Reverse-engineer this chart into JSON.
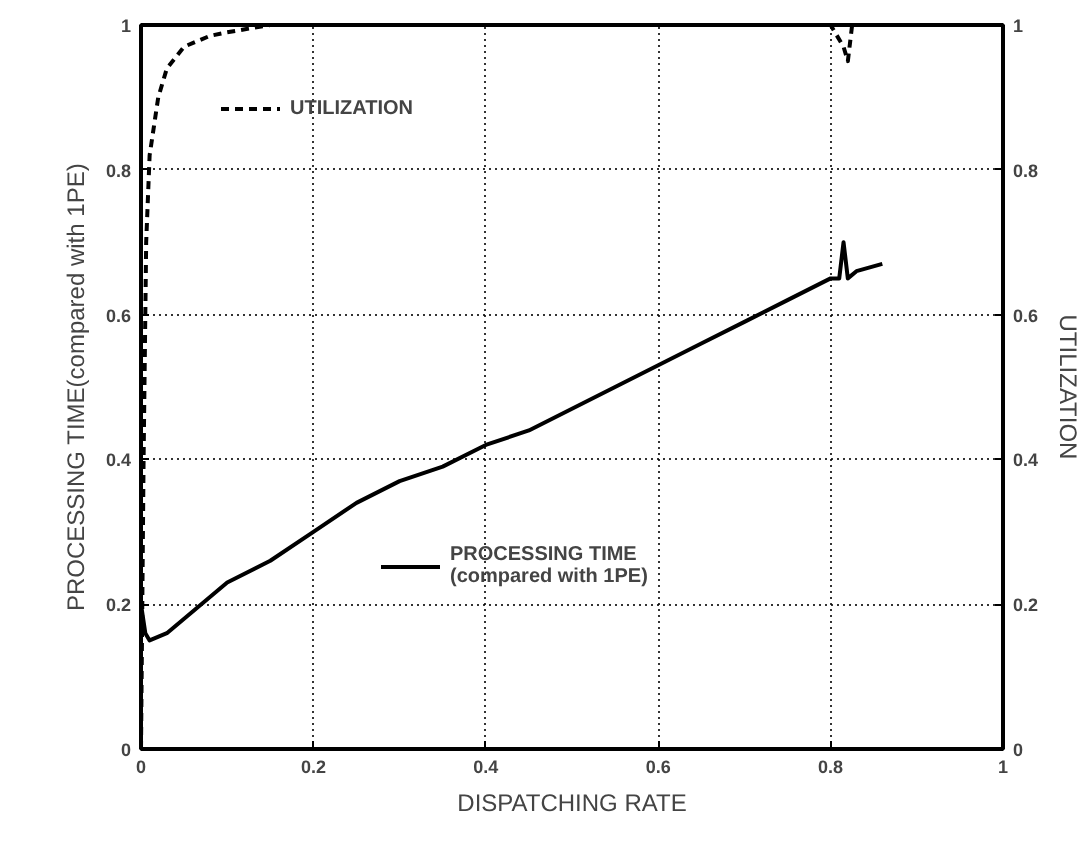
{
  "chart_data": {
    "type": "line",
    "xlabel": "DISPATCHING RATE",
    "ylabel": "PROCESSING TIME(compared with 1PE)",
    "y2label": "UTILIZATION",
    "xlim": [
      0,
      1
    ],
    "xticks": [
      0,
      0.2,
      0.4,
      0.6,
      0.8,
      1
    ],
    "ylim": [
      0,
      1
    ],
    "yticks": [
      0,
      0.2,
      0.4,
      0.6,
      0.8,
      1
    ],
    "y2lim": [
      0,
      1
    ],
    "y2ticks": [
      0,
      0.2,
      0.4,
      0.6,
      0.8,
      1
    ],
    "grid": true,
    "legend": "top left",
    "marker": "none",
    "series": [
      {
        "name": "UTILIZATION",
        "color": "#000000",
        "axis": "y2",
        "line_style": "dashed",
        "x": [
          0,
          0.003,
          0.006,
          0.01,
          0.02,
          0.03,
          0.05,
          0.08,
          0.1,
          0.15,
          0.2,
          0.4,
          0.6,
          0.8,
          0.815,
          0.82,
          0.825,
          0.83,
          1
        ],
        "values": [
          0,
          0.4,
          0.7,
          0.82,
          0.9,
          0.94,
          0.97,
          0.985,
          0.99,
          1,
          1,
          1,
          1,
          1,
          0.97,
          0.95,
          1,
          1,
          1
        ]
      },
      {
        "name": "PROCESSING TIME\n(compared with 1PE)",
        "color": "#000000",
        "line_style": "solid",
        "x": [
          0,
          0.005,
          0.01,
          0.03,
          0.06,
          0.1,
          0.15,
          0.2,
          0.25,
          0.3,
          0.35,
          0.4,
          0.45,
          0.5,
          0.55,
          0.6,
          0.65,
          0.7,
          0.75,
          0.8,
          0.81,
          0.815,
          0.82,
          0.83,
          0.86
        ],
        "values": [
          0.2,
          0.16,
          0.15,
          0.16,
          0.19,
          0.23,
          0.26,
          0.3,
          0.34,
          0.37,
          0.39,
          0.42,
          0.44,
          0.47,
          0.5,
          0.53,
          0.56,
          0.59,
          0.62,
          0.65,
          0.65,
          0.7,
          0.65,
          0.66,
          0.67
        ]
      }
    ]
  }
}
